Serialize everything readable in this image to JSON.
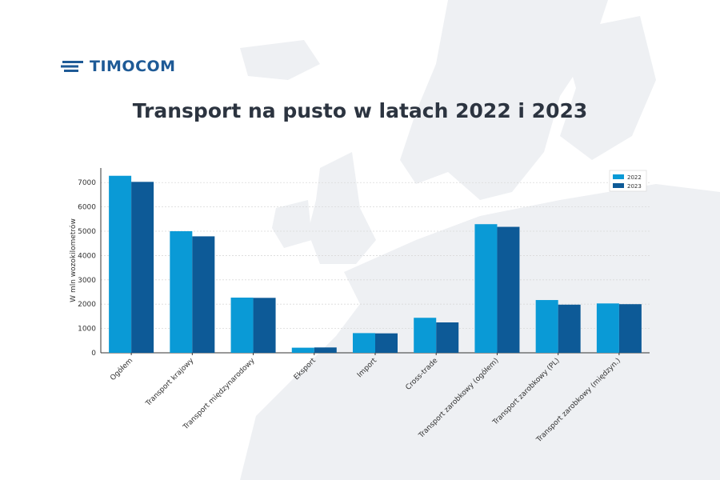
{
  "brand": {
    "name": "TIMOCOM",
    "color": "#1e5a96"
  },
  "chart_data": {
    "type": "bar",
    "title": "Transport na pusto w latach 2022 i 2023",
    "ylabel": "W mln wozokilometrów",
    "xlabel": "",
    "ylim": [
      0,
      7600
    ],
    "yticks": [
      0,
      1000,
      2000,
      3000,
      4000,
      5000,
      6000,
      7000
    ],
    "grid": true,
    "legend_position": "top-right",
    "categories": [
      "Ogółem",
      "Transport krajowy",
      "Transport międzynarodowy",
      "Eksport",
      "Import",
      "Cross-trade",
      "Transport zarobkowy (ogółem)",
      "Transport zarobkowy (PL)",
      "Transport zarobkowy (międzyn.)"
    ],
    "series": [
      {
        "name": "2022",
        "color": "#0a9ad6",
        "values": [
          7280,
          5000,
          2270,
          210,
          810,
          1440,
          5290,
          2170,
          2030
        ]
      },
      {
        "name": "2023",
        "color": "#0d5a97",
        "values": [
          7030,
          4790,
          2260,
          220,
          800,
          1250,
          5180,
          1980,
          2000
        ]
      }
    ]
  },
  "colors": {
    "title": "#2c3440",
    "axis": "#333333",
    "grid": "#d9d9d9",
    "map": "#eef0f3"
  }
}
